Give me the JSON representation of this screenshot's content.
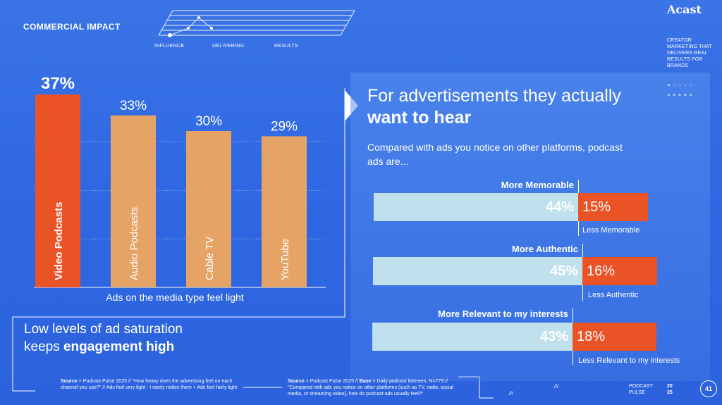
{
  "header": {
    "title": "COMMERCIAL IMPACT",
    "steps": [
      "INFLUENCE",
      "DELIVERING",
      "RESULTS"
    ]
  },
  "brand": {
    "logo": "Acast",
    "tagline": "CREATOR MARKETING THAT DELIVERS REAL RESULTS FOR BRANDS"
  },
  "chart_data": [
    {
      "type": "bar",
      "title": "",
      "xlabel": "Ads on the media type feel light",
      "ylabel": "",
      "categories": [
        "Video Podcasts",
        "Audio Podcasts",
        "Cable TV",
        "YouTube"
      ],
      "values": [
        37,
        33,
        30,
        29
      ],
      "value_labels": [
        "37%",
        "33%",
        "30%",
        "29%"
      ],
      "ylim": [
        0,
        40
      ],
      "grid": true,
      "colors": [
        "#ea5326",
        "#e5a366",
        "#e5a366",
        "#e5a366"
      ]
    },
    {
      "type": "bar",
      "orientation": "horizontal-diverging",
      "title": "For advertisements they actually want to hear",
      "series": [
        {
          "more_label": "More Memorable",
          "more_value": 44,
          "more_text": "44%",
          "less_label": "Less Memorable",
          "less_value": 15,
          "less_text": "15%"
        },
        {
          "more_label": "More Authentic",
          "more_value": 45,
          "more_text": "45%",
          "less_label": "Less Authentic",
          "less_value": 16,
          "less_text": "16%"
        },
        {
          "more_label": "More Relevant to my interests",
          "more_value": 43,
          "more_text": "43%",
          "less_label": "Less Relevant to my interests",
          "less_value": 18,
          "less_text": "18%"
        }
      ]
    }
  ],
  "panel": {
    "heading_plain": "For advertisements they actually",
    "heading_bold": "want to hear",
    "subheading": "Compared with ads you notice on other platforms, podcast ads are..."
  },
  "left_caption": {
    "line1": "Low levels of ad saturation",
    "line2_plain": "keeps",
    "line2_bold": "engagement high"
  },
  "sources": {
    "source1_label": "Source",
    "source1_text": " > Podcast Pulse 2025 // \"How heavy does the advertising feel on each channel you use?\" // Ads feel very light - I rarely notice them + Ads feel fairly light",
    "source2_label": "Source",
    "source2_mid": " > Podcast Pulse 2025 // ",
    "source2_base": "Base",
    "source2_text": " > Daily podcast listeners, N=779 // \"Compared with ads you notice on other platforms (such as TV, radio, social media, or streaming video), how do podcast ads usually feel?\""
  },
  "footer": {
    "slashes": "///",
    "podcast_pulse": "PODCAST PULSE",
    "year_top": "20",
    "year_bottom": "25",
    "page_number": "41"
  }
}
